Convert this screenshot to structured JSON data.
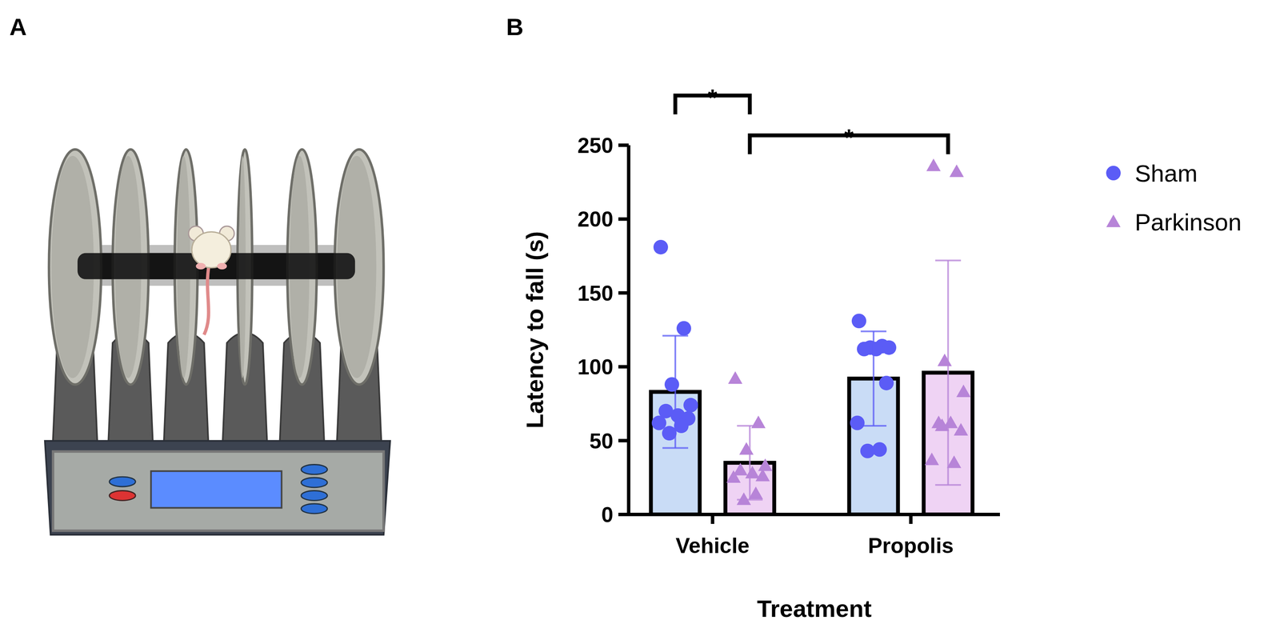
{
  "illustration": {
    "panel_label": "A"
  },
  "chart_data": {
    "type": "bar",
    "panel_label": "B",
    "x_label": "Treatment",
    "y_label": "Latency to fall (s)",
    "categories": [
      "Vehicle",
      "Propolis"
    ],
    "series": [
      {
        "name": "Sham",
        "color": "#5b5cf6",
        "marker": "circle",
        "values": [
          83,
          92
        ],
        "errors": [
          38,
          32
        ],
        "points": [
          [
            181,
            126,
            88,
            74,
            70,
            67,
            65,
            62,
            60,
            55
          ],
          [
            131,
            114,
            113,
            113,
            112,
            112,
            89,
            62,
            44,
            43
          ]
        ]
      },
      {
        "name": "Parkinson",
        "color": "#b784d8",
        "marker": "triangle",
        "values": [
          35,
          96
        ],
        "errors": [
          25,
          76
        ],
        "points": [
          [
            92,
            62,
            44,
            33,
            30,
            28,
            26,
            25,
            14,
            10
          ],
          [
            236,
            232,
            104,
            83,
            62,
            62,
            57,
            37,
            35,
            60
          ]
        ]
      }
    ],
    "ylim": [
      0,
      250
    ],
    "yticks": [
      0,
      50,
      100,
      150,
      200,
      250
    ],
    "grid": false,
    "legend": "right",
    "annotations": [
      {
        "text": "*",
        "from": {
          "category": 0,
          "series": 0
        },
        "to": {
          "category": 0,
          "series": 1
        }
      },
      {
        "text": "*",
        "from": {
          "category": 0,
          "series": 1
        },
        "to": {
          "category": 1,
          "series": 1
        }
      }
    ]
  }
}
